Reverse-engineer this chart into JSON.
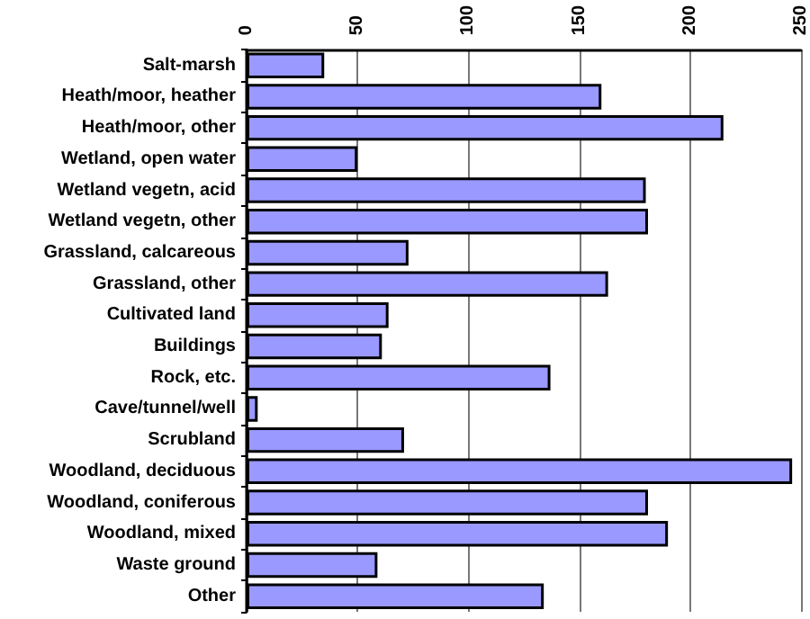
{
  "chart_data": {
    "type": "bar",
    "orientation": "horizontal",
    "categories": [
      "Salt-marsh",
      "Heath/moor, heather",
      "Heath/moor, other",
      "Wetland, open water",
      "Wetland vegetn, acid",
      "Wetland vegetn, other",
      "Grassland, calcareous",
      "Grassland, other",
      "Cultivated land",
      "Buildings",
      "Rock, etc.",
      "Cave/tunnel/well",
      "Scrubland",
      "Woodland, deciduous",
      "Woodland, coniferous",
      "Woodland, mixed",
      "Waste ground",
      "Other"
    ],
    "values": [
      35,
      160,
      215,
      50,
      180,
      181,
      73,
      163,
      64,
      61,
      137,
      5,
      71,
      246,
      181,
      190,
      59,
      134
    ],
    "color": "#9999ff",
    "xlim": [
      0,
      250
    ],
    "xticks": [
      0,
      50,
      100,
      150,
      200,
      250
    ],
    "grid": "x"
  }
}
